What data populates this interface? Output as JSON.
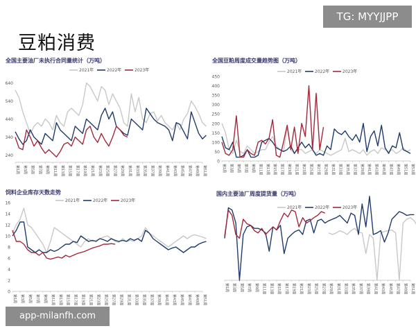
{
  "slide_title": "豆粕消费",
  "watermarks": {
    "top": "TG: MYYJJPP",
    "bottom": "app-milanfh.com"
  },
  "colors": {
    "y2021": "#c8c8c8",
    "y2022": "#1f3a6b",
    "y2023": "#a3283a",
    "axis": "#bbbbbb",
    "tick": "#555555"
  },
  "chart_data": [
    {
      "type": "line",
      "title": "全国主要油厂未执行合同量统计（万吨）",
      "yticks": [
        240,
        340,
        440,
        540,
        640
      ],
      "ylim": [
        200,
        700
      ],
      "xticks": [
        "第1周",
        "第3周",
        "第5周",
        "第7周",
        "第9周",
        "第11周",
        "第13周",
        "第15周",
        "第17周",
        "第19周",
        "第21周",
        "第23周",
        "第25周",
        "第27周",
        "第29周",
        "第31周",
        "第33周",
        "第35周",
        "第37周",
        "第39周",
        "第41周",
        "第43周",
        "第45周",
        "第47周",
        "第49周",
        "第51周"
      ],
      "series": [
        {
          "name": "2021年",
          "color_key": "y2021",
          "start_week": 1,
          "values": [
            600,
            560,
            480,
            420,
            360,
            400,
            420,
            400,
            440,
            420,
            380,
            460,
            420,
            400,
            480,
            500,
            480,
            460,
            520,
            640,
            620,
            580,
            540,
            620,
            600,
            520,
            580,
            540,
            500,
            420,
            400,
            580,
            480,
            560,
            440,
            420,
            470,
            480,
            430,
            460,
            420,
            400,
            380,
            420,
            380,
            440,
            470,
            540,
            510,
            470,
            420,
            400
          ]
        },
        {
          "name": "2022年",
          "color_key": "y2022",
          "start_week": 1,
          "values": [
            370,
            330,
            300,
            320,
            380,
            340,
            320,
            300,
            360,
            340,
            320,
            420,
            380,
            360,
            340,
            320,
            400,
            380,
            360,
            440,
            420,
            400,
            380,
            460,
            500,
            440,
            480,
            400,
            380,
            360,
            350,
            440,
            420,
            400,
            380,
            500,
            470,
            440,
            420,
            410,
            400,
            380,
            320,
            420,
            410,
            370,
            330,
            480,
            420,
            360,
            330,
            350
          ]
        },
        {
          "name": "2023年",
          "color_key": "y2023",
          "start_week": 1,
          "values": [
            340,
            280,
            270,
            380,
            340,
            290,
            320,
            280,
            250,
            270,
            250,
            230,
            260,
            300,
            310,
            290,
            340,
            320,
            300,
            380,
            400,
            340,
            310,
            360,
            320,
            290,
            340,
            400,
            380,
            350,
            340
          ]
        }
      ]
    },
    {
      "type": "line",
      "title": "全国豆粕周度成交量趋势图（万吨）",
      "yticks": [
        0,
        50,
        100,
        150,
        200,
        250,
        300,
        350,
        400,
        450
      ],
      "ylim": [
        0,
        450
      ],
      "xticks": [
        "第1周",
        "第3周",
        "第5周",
        "第7周",
        "第9周",
        "第11周",
        "第13周",
        "第15周",
        "第17周",
        "第19周",
        "第21周",
        "第23周",
        "第25周",
        "第27周",
        "第29周",
        "第31周",
        "第33周",
        "第35周",
        "第37周",
        "第39周",
        "第41周",
        "第43周",
        "第45周",
        "第47周",
        "第49周",
        "第51周",
        "第53周"
      ],
      "series": [
        {
          "name": "2021年",
          "color_key": "y2021",
          "start_week": 1,
          "values": [
            200,
            150,
            60,
            40,
            110,
            50,
            40,
            80,
            60,
            40,
            50,
            60,
            60,
            100,
            130,
            80,
            60,
            50,
            180,
            60,
            40,
            60,
            60,
            40,
            50,
            60,
            40,
            60,
            50,
            40,
            30,
            40,
            50,
            60,
            120,
            50,
            60,
            50,
            40,
            60,
            30,
            50,
            60,
            40,
            70,
            60,
            50,
            60,
            40,
            50,
            70,
            50,
            60
          ]
        },
        {
          "name": "2022年",
          "color_key": "y2022",
          "start_week": 1,
          "values": [
            130,
            70,
            60,
            100,
            20,
            20,
            30,
            60,
            20,
            20,
            30,
            100,
            110,
            120,
            100,
            70,
            60,
            50,
            60,
            80,
            40,
            70,
            100,
            70,
            90,
            60,
            30,
            40,
            30,
            80,
            60,
            170,
            150,
            140,
            160,
            130,
            110,
            140,
            100,
            200,
            50,
            130,
            160,
            80,
            190,
            70,
            40,
            80,
            70,
            150,
            60,
            50,
            40
          ]
        },
        {
          "name": "2023年",
          "color_key": "y2023",
          "start_week": 1,
          "values": [
            100,
            40,
            30,
            60,
            240,
            20,
            20,
            60,
            40,
            30,
            100,
            110,
            90,
            120,
            220,
            30,
            20,
            100,
            190,
            60,
            180,
            40,
            200,
            130,
            400,
            60,
            360,
            60,
            180
          ]
        }
      ]
    },
    {
      "type": "line",
      "title": "饲料企业库存天数走势",
      "yticks": [
        0,
        2,
        4,
        6,
        8,
        10,
        12,
        14,
        16
      ],
      "ylim": [
        0,
        16
      ],
      "xticks": [
        "第1周",
        "第3周",
        "第5周",
        "第7周",
        "第9周",
        "第11周",
        "第13周",
        "第15周",
        "第17周",
        "第19周",
        "第21周",
        "第23周",
        "第25周",
        "第27周",
        "第29周",
        "第31周",
        "第33周",
        "第35周",
        "第37周",
        "第39周",
        "第41周",
        "第43周",
        "第45周",
        "第47周",
        "第49周",
        "第51周"
      ],
      "series": [
        {
          "name": "2021年",
          "color_key": "y2021",
          "start_week": 1,
          "values": [
            10.5,
            12.0,
            13.0,
            15.0,
            12.0,
            11.5,
            10.5,
            9.5,
            8.5,
            7.0,
            9.0,
            11.5,
            11.0,
            10.5,
            10.0,
            9.5,
            9.0,
            8.5,
            8.0,
            9.0,
            9.5,
            9.0,
            9.2,
            9.5,
            9.8,
            10.0,
            9.5,
            9.0,
            8.8,
            9.5,
            9.0,
            9.2,
            9.0,
            9.5,
            10.0,
            11.5,
            10.5,
            10.0,
            9.5,
            9.0,
            8.5,
            8.0,
            8.5,
            9.0,
            9.5,
            10.0,
            9.5,
            10.0,
            10.2,
            10.0,
            9.8,
            9.5
          ]
        },
        {
          "name": "2022年",
          "color_key": "y2022",
          "start_week": 1,
          "values": [
            10.0,
            11.0,
            12.5,
            12.5,
            8.0,
            7.5,
            7.0,
            7.5,
            7.0,
            7.0,
            7.5,
            7.2,
            7.5,
            8.0,
            8.5,
            8.5,
            9.0,
            8.8,
            10.0,
            9.5,
            9.0,
            9.2,
            9.0,
            9.5,
            9.3,
            9.0,
            9.5,
            9.2,
            9.0,
            9.2,
            9.0,
            9.5,
            9.2,
            9.5,
            9.0,
            11.0,
            10.5,
            9.5,
            9.0,
            8.5,
            8.0,
            7.5,
            7.8,
            8.0,
            7.5,
            7.0,
            7.5,
            8.0,
            8.0,
            8.5,
            8.8,
            9.0
          ]
        },
        {
          "name": "2023年",
          "color_key": "y2023",
          "start_week": 1,
          "values": [
            11.0,
            9.0,
            9.0,
            8.5,
            7.5,
            7.0,
            7.0,
            6.5,
            7.0,
            6.0,
            5.8,
            6.0,
            6.2,
            6.0,
            6.5,
            6.2,
            6.5,
            6.8,
            7.0,
            7.2,
            7.5,
            7.8,
            8.0,
            8.2,
            8.5,
            8.5,
            8.6,
            8.5
          ]
        }
      ]
    },
    {
      "type": "line",
      "title": "国内主要油厂周度提货量（万吨）",
      "yticks": [],
      "ylim": [
        0,
        100
      ],
      "xticks": [
        "第1周",
        "第3周",
        "第5周",
        "第7周",
        "第9周",
        "第11周",
        "第13周",
        "第15周",
        "第17周",
        "第19周",
        "第21周",
        "第23周",
        "第25周",
        "第27周",
        "第29周",
        "第31周",
        "第33周",
        "第35周",
        "第37周",
        "第39周",
        "第41周",
        "第43周",
        "第45周",
        "第47周",
        "第49周",
        "第51周"
      ],
      "series": [
        {
          "name": "2021年",
          "color_key": "y2021",
          "start_week": 29,
          "values": [
            62,
            60,
            62,
            65,
            63,
            60,
            65,
            68,
            63,
            62,
            35,
            60,
            55,
            0,
            62,
            64,
            65,
            66,
            62,
            0,
            75,
            80,
            82,
            78,
            70,
            65
          ]
        },
        {
          "name": "2022年",
          "color_key": "y2022",
          "start_week": 1,
          "values": [
            55,
            95,
            92,
            75,
            0,
            60,
            70,
            72,
            68,
            68,
            66,
            62,
            38,
            70,
            66,
            72,
            35,
            55,
            60,
            64,
            66,
            60,
            78,
            80,
            62,
            78,
            80,
            75,
            78,
            80,
            82,
            85,
            80,
            75,
            88,
            85,
            60,
            100,
            70,
            110,
            60,
            62,
            65,
            50,
            62,
            80,
            85,
            90,
            88,
            85,
            86,
            86
          ]
        },
        {
          "name": "2023年",
          "color_key": "y2023",
          "start_week": 1,
          "values": [
            58,
            92,
            85,
            60,
            55,
            80,
            74,
            72,
            65,
            62,
            68,
            60,
            65,
            70,
            66,
            78,
            88,
            83,
            92,
            90,
            70,
            82,
            75,
            78,
            82,
            85,
            90,
            88
          ]
        }
      ]
    }
  ]
}
